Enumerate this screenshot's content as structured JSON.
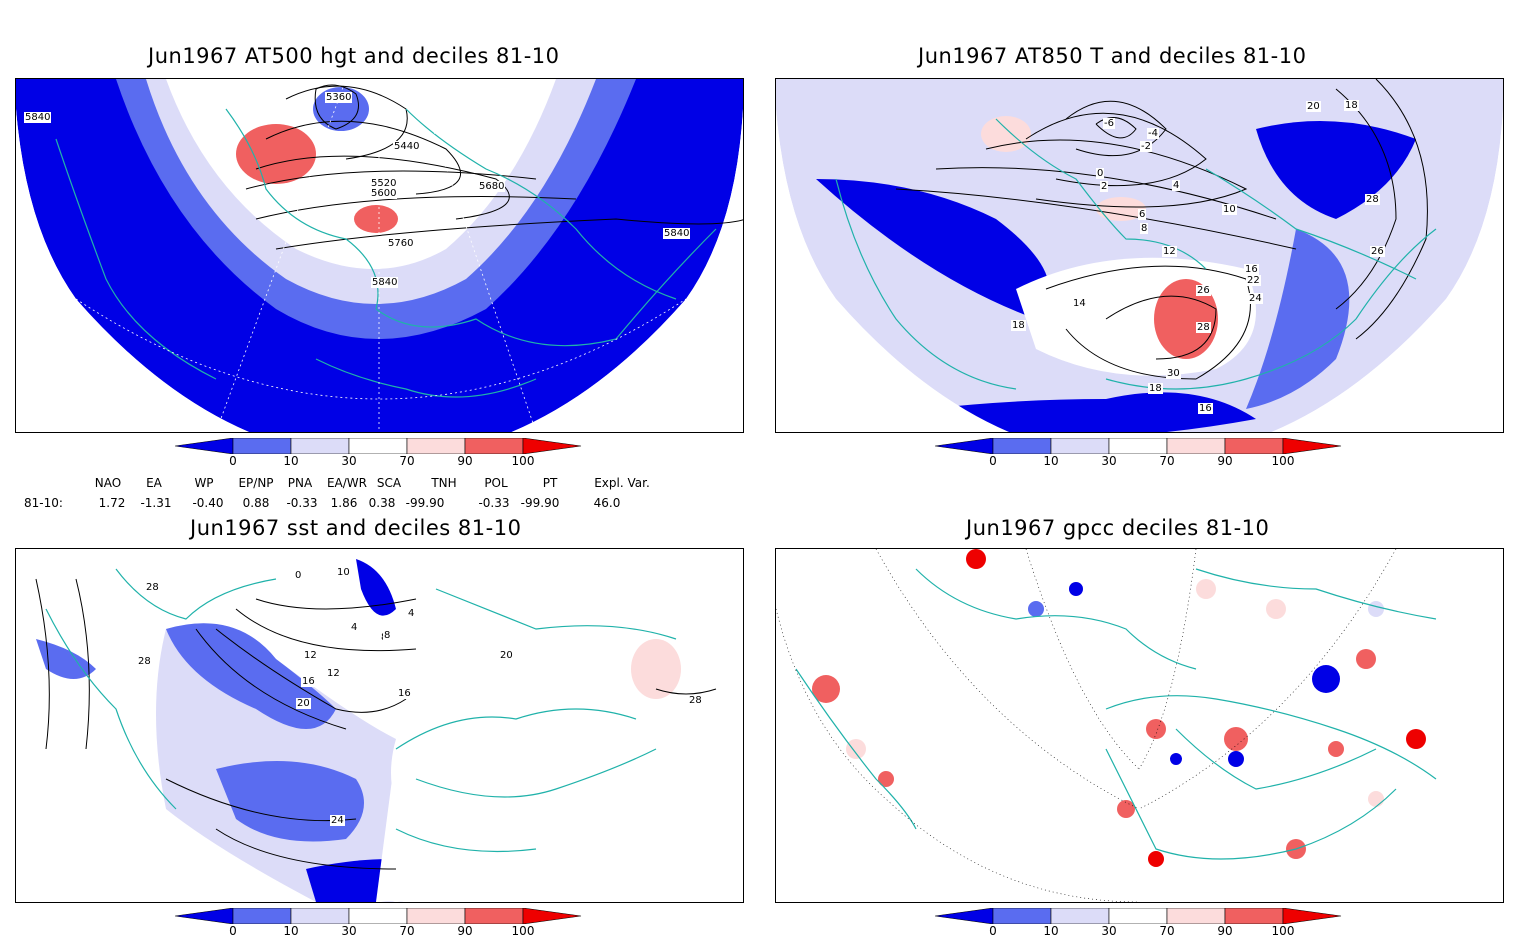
{
  "panels": [
    {
      "title": "Jun1967 AT500 hgt and deciles 81-10",
      "contours": [
        "5360",
        "5440",
        "5520",
        "5600",
        "5680",
        "5760",
        "5840",
        "5840",
        "5840"
      ]
    },
    {
      "title": "Jun1967 AT850 T and deciles 81-10",
      "contours": [
        "-6",
        "-4",
        "-2",
        "0",
        "2",
        "4",
        "6",
        "8",
        "10",
        "12",
        "14",
        "16",
        "18",
        "18",
        "20",
        "22",
        "24",
        "26",
        "28",
        "30",
        "16",
        "18",
        "26",
        "28"
      ]
    },
    {
      "title": "Jun1967 sst and deciles 81-10",
      "contours": [
        "0",
        "10",
        "4",
        "8",
        "12",
        "16",
        "20",
        "24",
        "28",
        "28",
        "28",
        "20",
        "16",
        "4",
        "8",
        "12"
      ]
    },
    {
      "title": "Jun1967 gpcc deciles 81-10",
      "contours": []
    }
  ],
  "colorbar": {
    "labels": [
      "0",
      "10",
      "30",
      "70",
      "90",
      "100"
    ],
    "colors": [
      "#0000e6",
      "#5a6cf0",
      "#dcdcf8",
      "#ffffff",
      "#fcdcdc",
      "#f06060",
      "#ee0000"
    ]
  },
  "teleconnections": {
    "row_label": "81-10:",
    "columns": [
      {
        "name": "NAO",
        "value": "1.72"
      },
      {
        "name": "EA",
        "value": "-1.31"
      },
      {
        "name": "WP",
        "value": "-0.40"
      },
      {
        "name": "EP/NP",
        "value": "0.88"
      },
      {
        "name": "PNA",
        "value": "-0.33"
      },
      {
        "name": "EA/WR",
        "value": "1.86"
      },
      {
        "name": "SCA",
        "value": "0.38"
      },
      {
        "name": "TNH",
        "value": "-99.90"
      },
      {
        "name": "POL",
        "value": "-0.33"
      },
      {
        "name": "PT",
        "value": "-99.90"
      },
      {
        "name": "Expl. Var.",
        "value": "46.0"
      }
    ]
  }
}
